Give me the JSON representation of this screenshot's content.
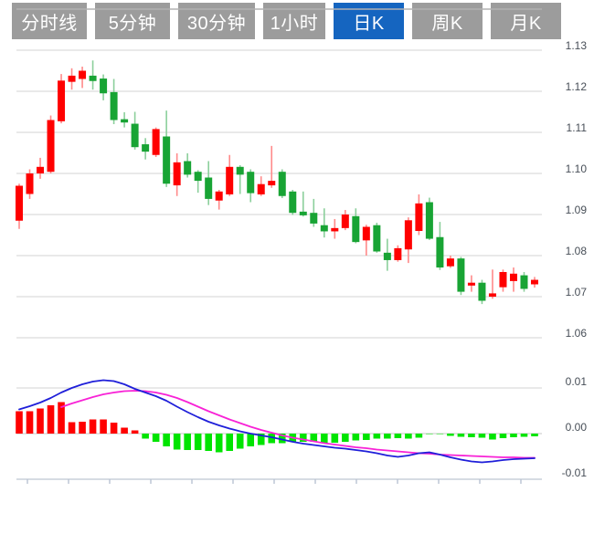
{
  "tabs": {
    "items": [
      {
        "name": "tab-time-line",
        "label": "分时线",
        "active": false
      },
      {
        "name": "tab-5min",
        "label": "5分钟",
        "active": false
      },
      {
        "name": "tab-30min",
        "label": "30分钟",
        "active": false
      },
      {
        "name": "tab-1hour",
        "label": "1小时",
        "active": false
      },
      {
        "name": "tab-daily-k",
        "label": "日K",
        "active": true
      },
      {
        "name": "tab-weekly-k",
        "label": "周K",
        "active": false
      },
      {
        "name": "tab-monthly-k",
        "label": "月K",
        "active": false
      }
    ]
  },
  "colors": {
    "up_body": "#ff0000",
    "up_wick": "#ff8a8a",
    "down_body": "#18a434",
    "down_wick": "#8bcf9b",
    "macd_positive": "#ff0000",
    "macd_negative": "#00e400",
    "dif_line": "#1f1fd9",
    "dea_line": "#f822d6",
    "grid": "#dcdcdc",
    "grid_strong": "#b2b2b2",
    "zero_line": "#d2d2d2",
    "axis_line": "#c8d0da",
    "tick": "#b9c3d2",
    "label": "#474e57",
    "tab_bg": "#9c9c9c",
    "tab_active_bg": "#1565c0",
    "tab_text": "#ffffff"
  },
  "chart_data": {
    "type": "candlestick",
    "subpanes": [
      "price",
      "macd"
    ],
    "price_axis": {
      "max": 1.13,
      "min": 1.06,
      "step": 0.01,
      "labels": [
        "1.13",
        "1.12",
        "1.11",
        "1.10",
        "1.09",
        "1.08",
        "1.07",
        "1.06"
      ]
    },
    "candle_format": "[open, high, low, close]; close>=open drawn red (up), close<open drawn green (down)",
    "candles": [
      [
        1.0885,
        1.0975,
        1.0865,
        1.097
      ],
      [
        1.095,
        1.101,
        1.0938,
        1.1
      ],
      [
        1.1,
        1.1038,
        1.0987,
        1.1016
      ],
      [
        1.1004,
        1.1141,
        1.1,
        1.113
      ],
      [
        1.1127,
        1.1242,
        1.1122,
        1.1226
      ],
      [
        1.1223,
        1.1256,
        1.1204,
        1.1238
      ],
      [
        1.123,
        1.126,
        1.1208,
        1.125
      ],
      [
        1.1238,
        1.1275,
        1.1204,
        1.1225
      ],
      [
        1.1231,
        1.1241,
        1.1178,
        1.1195
      ],
      [
        1.1198,
        1.123,
        1.112,
        1.113
      ],
      [
        1.1132,
        1.1149,
        1.1112,
        1.1124
      ],
      [
        1.1121,
        1.115,
        1.1058,
        1.1064
      ],
      [
        1.1071,
        1.1086,
        1.1034,
        1.1053
      ],
      [
        1.1045,
        1.1112,
        1.104,
        1.1108
      ],
      [
        1.109,
        1.1153,
        1.0967,
        1.0975
      ],
      [
        1.0971,
        1.1049,
        1.0945,
        1.1027
      ],
      [
        1.103,
        1.1049,
        1.099,
        1.0997
      ],
      [
        1.1004,
        1.1008,
        1.0953,
        1.0982
      ],
      [
        1.099,
        1.103,
        1.0923,
        1.0938
      ],
      [
        1.0934,
        1.096,
        1.0912,
        1.0956
      ],
      [
        1.0949,
        1.1045,
        1.0945,
        1.1016
      ],
      [
        1.1016,
        1.102,
        1.095,
        1.0997
      ],
      [
        1.1004,
        1.101,
        1.093,
        1.0952
      ],
      [
        1.0949,
        1.0993,
        1.0945,
        1.0974
      ],
      [
        1.0971,
        1.1067,
        1.0965,
        1.0982
      ],
      [
        1.1004,
        1.101,
        1.094,
        1.0945
      ],
      [
        1.0956,
        1.096,
        1.0899,
        1.0904
      ],
      [
        1.0907,
        1.0956,
        1.0895,
        1.0898
      ],
      [
        1.0904,
        1.0938,
        1.087,
        1.0878
      ],
      [
        1.0874,
        1.0915,
        1.0844,
        1.0859
      ],
      [
        1.0859,
        1.0889,
        1.0841,
        1.0867
      ],
      [
        1.0867,
        1.0911,
        1.0862,
        1.09
      ],
      [
        1.0896,
        1.0915,
        1.083,
        1.0833
      ],
      [
        1.0837,
        1.0875,
        1.08,
        1.087
      ],
      [
        1.0874,
        1.088,
        1.0807,
        1.081
      ],
      [
        1.0807,
        1.0841,
        1.0763,
        1.0789
      ],
      [
        1.0789,
        1.0825,
        1.0785,
        1.0818
      ],
      [
        1.0815,
        1.0893,
        1.0782,
        1.0886
      ],
      [
        1.086,
        1.0949,
        1.085,
        1.0927
      ],
      [
        1.093,
        1.0941,
        1.0838,
        1.0841
      ],
      [
        1.0845,
        1.0882,
        1.0765,
        1.0771
      ],
      [
        1.0774,
        1.08,
        1.077,
        1.0793
      ],
      [
        1.0793,
        1.0797,
        1.0704,
        1.0712
      ],
      [
        1.0727,
        1.0752,
        1.0712,
        1.0734
      ],
      [
        1.0734,
        1.0741,
        1.0682,
        1.069
      ],
      [
        1.07,
        1.0766,
        1.0695,
        1.0708
      ],
      [
        1.0723,
        1.0766,
        1.0712,
        1.076
      ],
      [
        1.0738,
        1.0771,
        1.0712,
        1.0756
      ],
      [
        1.0752,
        1.076,
        1.0712,
        1.0719
      ],
      [
        1.073,
        1.0748,
        1.0722,
        1.0741
      ]
    ],
    "macd": {
      "axis_labels": [
        {
          "text": "0.01",
          "value": 0.01
        },
        {
          "text": "0.00",
          "value": 0.0
        },
        {
          "text": "-0.01",
          "value": -0.01
        }
      ],
      "histogram": [
        0.0049,
        0.0049,
        0.0055,
        0.0062,
        0.0069,
        0.0025,
        0.0026,
        0.0031,
        0.0031,
        0.0024,
        0.0013,
        0.0007,
        -0.0011,
        -0.0018,
        -0.0028,
        -0.0035,
        -0.0036,
        -0.0036,
        -0.0038,
        -0.0041,
        -0.0038,
        -0.0033,
        -0.0028,
        -0.0025,
        -0.0021,
        -0.0021,
        -0.0018,
        -0.0018,
        -0.0018,
        -0.0021,
        -0.002,
        -0.0018,
        -0.0015,
        -0.0014,
        -0.0011,
        -0.0011,
        -0.001,
        -0.0011,
        -0.0009,
        -0.0001,
        -0.0001,
        -0.0005,
        -0.0007,
        -0.0008,
        -0.0009,
        -0.0013,
        -0.001,
        -0.0008,
        -0.0007,
        -0.0006
      ],
      "dif": [
        0.0053,
        0.006,
        0.0068,
        0.0078,
        0.009,
        0.01,
        0.0108,
        0.0114,
        0.0117,
        0.0115,
        0.0108,
        0.0098,
        0.009,
        0.0082,
        0.0072,
        0.0059,
        0.0047,
        0.0036,
        0.0026,
        0.0018,
        0.0011,
        0.0005,
        0.0,
        -0.0004,
        -0.0008,
        -0.0013,
        -0.0018,
        -0.0022,
        -0.0025,
        -0.0028,
        -0.0031,
        -0.0033,
        -0.0036,
        -0.0039,
        -0.0043,
        -0.0048,
        -0.0051,
        -0.0048,
        -0.0043,
        -0.0041,
        -0.0046,
        -0.0052,
        -0.0057,
        -0.0061,
        -0.0063,
        -0.0061,
        -0.0058,
        -0.0056,
        -0.0055,
        -0.0054
      ],
      "dea": [
        null,
        null,
        null,
        null,
        0.0058,
        0.0066,
        0.0073,
        0.008,
        0.0086,
        0.009,
        0.0093,
        0.0094,
        0.0093,
        0.009,
        0.0085,
        0.0078,
        0.0069,
        0.0059,
        0.0049,
        0.004,
        0.0031,
        0.0023,
        0.0015,
        0.0008,
        0.0002,
        -0.0004,
        -0.0009,
        -0.0013,
        -0.0017,
        -0.0021,
        -0.0024,
        -0.0027,
        -0.003,
        -0.0032,
        -0.0035,
        -0.0037,
        -0.0039,
        -0.0041,
        -0.0043,
        -0.0044,
        -0.0046,
        -0.0047,
        -0.0048,
        -0.0049,
        -0.005,
        -0.0051,
        -0.0052,
        -0.0052,
        -0.0053,
        -0.0053
      ]
    }
  }
}
